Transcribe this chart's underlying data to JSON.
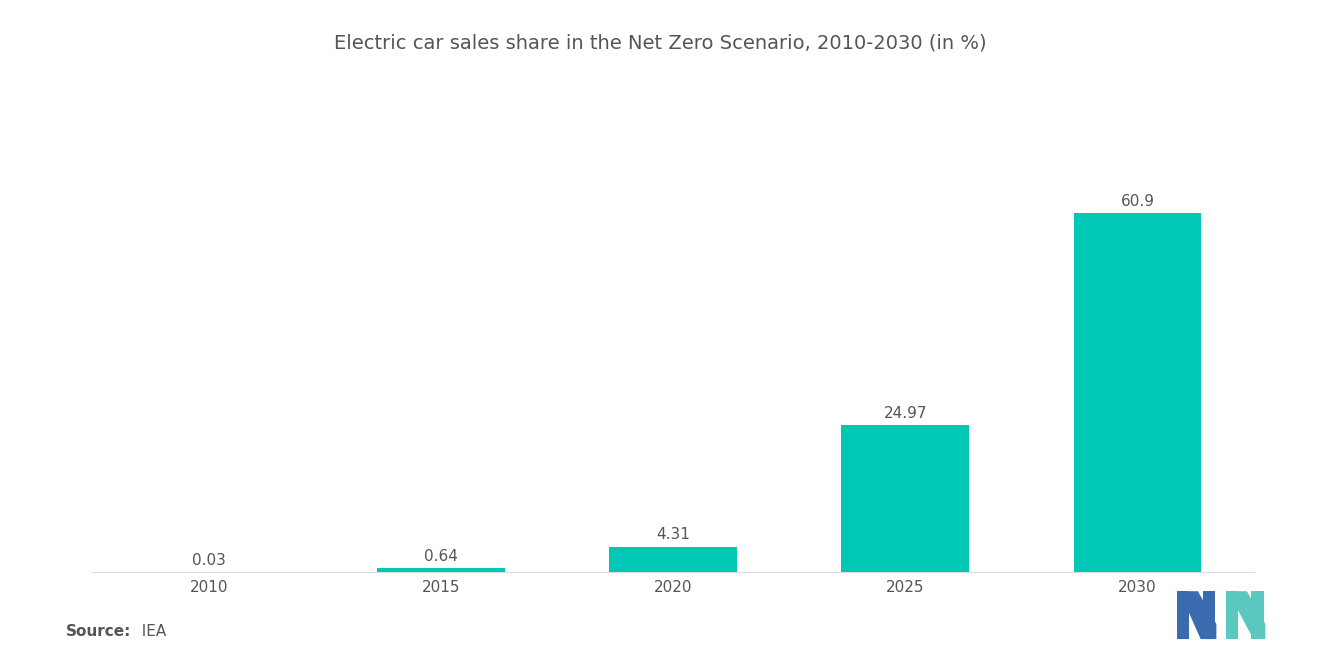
{
  "title": "Electric car sales share in the Net Zero Scenario, 2010-2030 (in %)",
  "categories": [
    "2010",
    "2015",
    "2020",
    "2025",
    "2030"
  ],
  "values": [
    0.03,
    0.64,
    4.31,
    24.97,
    60.9
  ],
  "labels": [
    "0.03",
    "0.64",
    "4.31",
    "24.97",
    "60.9"
  ],
  "bar_color": "#00C8B4",
  "background_color": "#ffffff",
  "source_label": "Source:",
  "source_value": "  IEA",
  "title_fontsize": 14,
  "label_fontsize": 11,
  "tick_fontsize": 11,
  "source_fontsize": 11,
  "ylim": [
    0,
    70
  ],
  "bar_width": 0.55,
  "logo_blue": "#3B6BAE",
  "logo_teal": "#5BC8C0"
}
